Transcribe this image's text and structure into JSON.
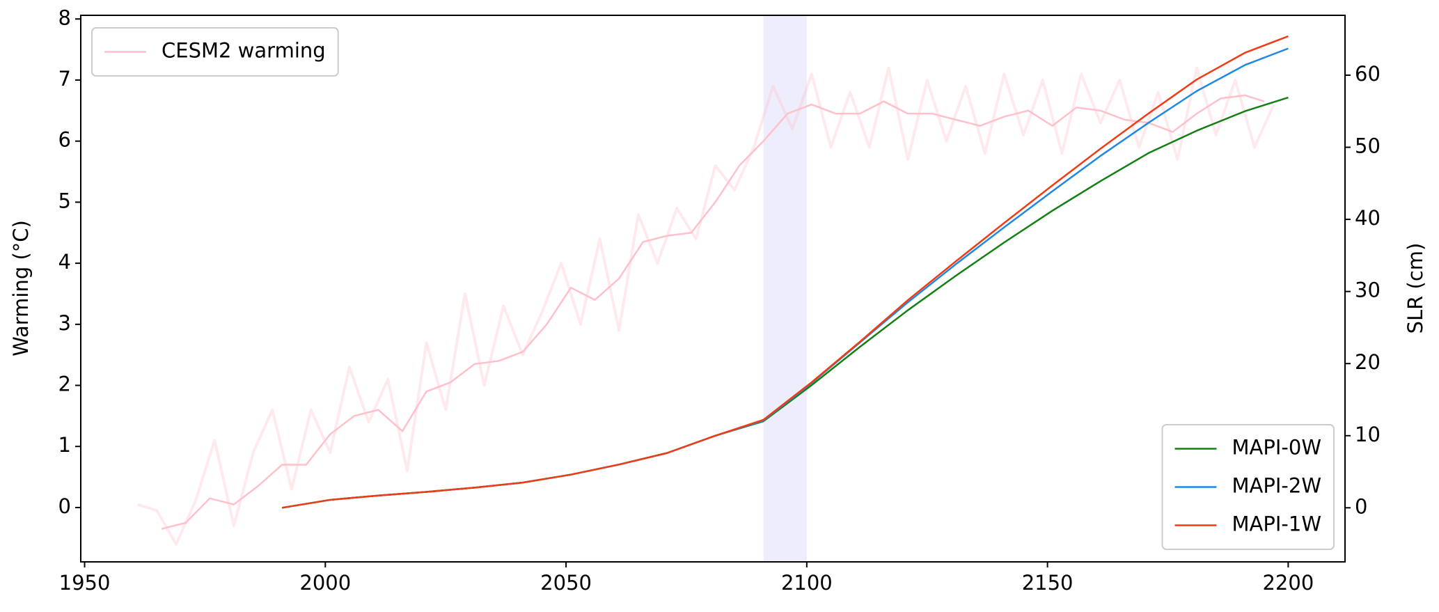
{
  "chart_data": {
    "type": "line",
    "ylabel": "Warming (°C)",
    "y2label": "SLR (cm)",
    "xlim": [
      1949.2,
      2211.8
    ],
    "xticks": [
      1950,
      2000,
      2050,
      2100,
      2150,
      2200
    ],
    "ylim": [
      -0.89,
      8.06
    ],
    "yticks": [
      0,
      1,
      2,
      3,
      4,
      5,
      6,
      7,
      8
    ],
    "y2lim": [
      -7.5,
      68.3
    ],
    "y2ticks": [
      0,
      10,
      20,
      30,
      40,
      50,
      60
    ],
    "shaded_span": [
      2091,
      2100
    ],
    "shaded_color": "#e6e6fa",
    "series": [
      {
        "color": "#ffc0cb",
        "alpha": 0.35,
        "axis": "y",
        "x": [
          1961,
          1965,
          1969,
          1973,
          1977,
          1981,
          1985,
          1989,
          1993,
          1997,
          2001,
          2005,
          2009,
          2013,
          2017,
          2021,
          2025,
          2029,
          2033,
          2037,
          2041,
          2045,
          2049,
          2053,
          2057,
          2061,
          2065,
          2069,
          2073,
          2077,
          2081,
          2085,
          2089,
          2093,
          2097,
          2101,
          2105,
          2109,
          2113,
          2117,
          2121,
          2125,
          2129,
          2133,
          2137,
          2141,
          2145,
          2149,
          2153,
          2157,
          2161,
          2165,
          2169,
          2173,
          2177,
          2181,
          2185,
          2189,
          2193,
          2197
        ],
        "values": [
          0.05,
          -0.05,
          -0.6,
          0.1,
          1.1,
          -0.3,
          0.9,
          1.6,
          0.3,
          1.6,
          0.9,
          2.3,
          1.4,
          2.1,
          0.6,
          2.7,
          1.6,
          3.5,
          2.0,
          3.3,
          2.5,
          3.2,
          4.0,
          3.0,
          4.4,
          2.9,
          4.8,
          4.0,
          4.9,
          4.4,
          5.6,
          5.2,
          5.9,
          6.9,
          6.2,
          7.1,
          5.9,
          6.8,
          5.9,
          7.2,
          5.7,
          7.0,
          6.0,
          6.9,
          5.8,
          7.1,
          6.1,
          7.0,
          5.8,
          7.1,
          6.3,
          7.0,
          5.9,
          6.8,
          5.7,
          7.2,
          6.1,
          7.0,
          5.9,
          6.6
        ]
      },
      {
        "name": "CESM2 warming",
        "color": "#ffc0cb",
        "alpha": 1,
        "axis": "y",
        "legend_loc": "upper left",
        "x": [
          1966,
          1971,
          1976,
          1981,
          1986,
          1991,
          1996,
          2001,
          2006,
          2011,
          2016,
          2021,
          2026,
          2031,
          2036,
          2041,
          2046,
          2051,
          2056,
          2061,
          2066,
          2071,
          2076,
          2081,
          2086,
          2091,
          2096,
          2101,
          2106,
          2111,
          2116,
          2121,
          2126,
          2131,
          2136,
          2141,
          2146,
          2151,
          2156,
          2161,
          2166,
          2171,
          2176,
          2181,
          2186,
          2191,
          2195
        ],
        "values": [
          -0.35,
          -0.25,
          0.15,
          0.05,
          0.35,
          0.7,
          0.7,
          1.2,
          1.5,
          1.6,
          1.25,
          1.9,
          2.05,
          2.35,
          2.4,
          2.55,
          3.0,
          3.6,
          3.4,
          3.75,
          4.35,
          4.45,
          4.5,
          5.0,
          5.6,
          6.0,
          6.45,
          6.6,
          6.45,
          6.45,
          6.65,
          6.45,
          6.45,
          6.35,
          6.25,
          6.4,
          6.5,
          6.25,
          6.55,
          6.5,
          6.35,
          6.3,
          6.15,
          6.45,
          6.7,
          6.75,
          6.65
        ]
      },
      {
        "name": "MAPI-0W",
        "color": "#138013",
        "alpha": 1,
        "axis": "y2",
        "legend_loc": "lower right",
        "x": [
          1991,
          2001,
          2011,
          2021,
          2031,
          2041,
          2051,
          2061,
          2071,
          2081,
          2091,
          2101,
          2111,
          2121,
          2131,
          2141,
          2151,
          2161,
          2171,
          2181,
          2191,
          2200
        ],
        "values": [
          0,
          1.1,
          1.7,
          2.2,
          2.8,
          3.5,
          4.6,
          6.0,
          7.6,
          10.0,
          12.0,
          17.0,
          22.3,
          27.4,
          32.2,
          36.8,
          41.2,
          45.3,
          49.2,
          52.3,
          55.0,
          56.9
        ]
      },
      {
        "name": "MAPI-2W",
        "color": "#1e88e5",
        "alpha": 1,
        "axis": "y2",
        "legend_loc": "lower right",
        "x": [
          1991,
          2001,
          2011,
          2021,
          2031,
          2041,
          2051,
          2061,
          2071,
          2081,
          2091,
          2101,
          2111,
          2121,
          2131,
          2141,
          2151,
          2161,
          2171,
          2181,
          2191,
          2200
        ],
        "values": [
          0,
          1.1,
          1.7,
          2.2,
          2.8,
          3.5,
          4.6,
          6.0,
          7.6,
          10.0,
          12.1,
          17.3,
          22.9,
          28.5,
          33.8,
          38.9,
          43.9,
          48.8,
          53.4,
          57.8,
          61.4,
          63.7
        ]
      },
      {
        "name": "MAPI-1W",
        "color": "#f03c14",
        "alpha": 1,
        "axis": "y2",
        "legend_loc": "lower right",
        "x": [
          1991,
          2001,
          2011,
          2021,
          2031,
          2041,
          2051,
          2061,
          2071,
          2081,
          2091,
          2101,
          2111,
          2121,
          2131,
          2141,
          2151,
          2161,
          2171,
          2181,
          2191,
          2200
        ],
        "values": [
          0,
          1.1,
          1.7,
          2.2,
          2.8,
          3.5,
          4.6,
          6.0,
          7.6,
          10.0,
          12.2,
          17.4,
          23.0,
          28.8,
          34.2,
          39.5,
          44.7,
          49.8,
          54.7,
          59.4,
          63.1,
          65.4
        ]
      }
    ]
  }
}
